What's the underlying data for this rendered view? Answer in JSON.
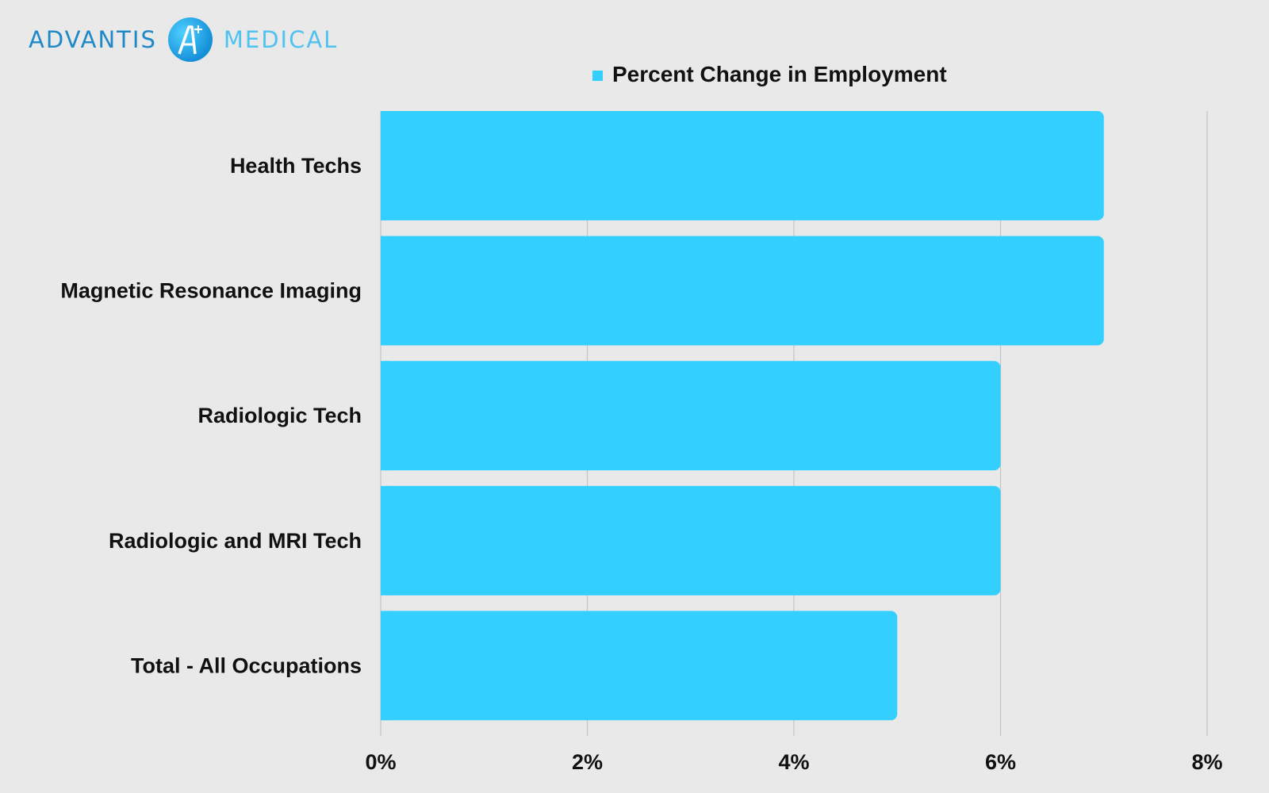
{
  "logo": {
    "left_word": "ADVANTIS",
    "right_word": "MEDICAL",
    "mark_icon": "advantis-a-plus-icon",
    "colors": {
      "left": "#1e88c8",
      "right": "#4fc3f0"
    }
  },
  "chart_data": {
    "type": "bar",
    "orientation": "horizontal",
    "categories": [
      "Health Techs",
      "Magnetic Resonance Imaging",
      "Radiologic Tech",
      "Radiologic and MRI Tech",
      "Total - All Occupations"
    ],
    "series": [
      {
        "name": "Percent Change in Employment",
        "values": [
          7,
          7,
          6,
          6,
          5
        ],
        "color": "#33d0ff"
      }
    ],
    "x_ticks": [
      "0%",
      "2%",
      "4%",
      "6%",
      "8%"
    ],
    "x_tick_values": [
      0,
      2,
      4,
      6,
      8
    ],
    "xlim": [
      0,
      8
    ],
    "title": "",
    "xlabel": "",
    "ylabel": "",
    "grid": true,
    "legend": "top-center",
    "colors": {
      "bar": "#33d0ff",
      "grid": "#c4c4c4",
      "background": "#e9e9e9"
    }
  }
}
